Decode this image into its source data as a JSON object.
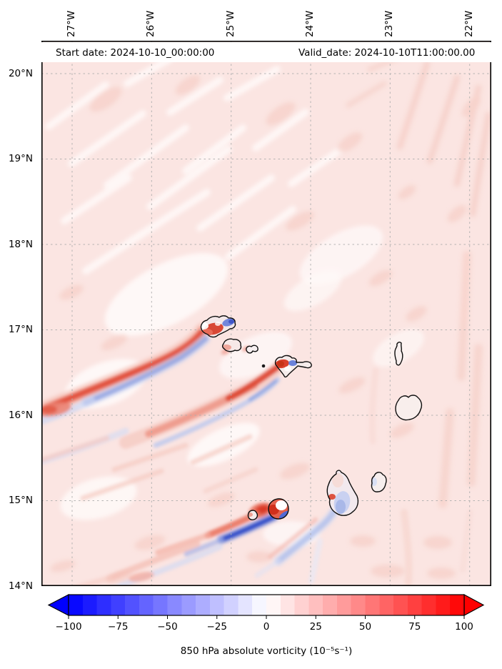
{
  "figure": {
    "title_left": "Start date: 2024-10-10_00:00:00",
    "title_right": "Valid_date: 2024-10-10T11:00:00.00",
    "background": "#ffffff"
  },
  "axes": {
    "lon_ticks": [
      "27°W",
      "26°W",
      "25°W",
      "24°W",
      "23°W",
      "22°W"
    ],
    "lat_ticks": [
      "20°N",
      "19°N",
      "18°N",
      "17°N",
      "16°N",
      "15°N",
      "14°N"
    ],
    "grid": true,
    "grid_style": "dashed-gray"
  },
  "colorbar": {
    "label": "850 hPa absolute vorticity (10⁻⁵s⁻¹)",
    "ticks": [
      "−100",
      "−75",
      "−50",
      "−25",
      "0",
      "25",
      "50",
      "75",
      "100"
    ],
    "vmin": -100,
    "vmax": 100,
    "cmap": "bwr",
    "extend": "both",
    "colors": {
      "min_end": "#0000ff",
      "zero": "#ffffff",
      "max_end": "#ff0000"
    }
  },
  "chart_data": {
    "type": "heatmap",
    "title_left": "Start date: 2024-10-10_00:00:00",
    "title_right": "Valid_date: 2024-10-10T11:00:00.00",
    "field": "850 hPa absolute vorticity",
    "units": "10⁻⁵ s⁻¹",
    "colormap": "bwr",
    "extend": "both",
    "vmin": -100,
    "vmax": 100,
    "colorbar_ticks": [
      -100,
      -75,
      -50,
      -25,
      0,
      25,
      50,
      75,
      100
    ],
    "x_axis": {
      "side": "top",
      "ticks": [
        "27°W",
        "26°W",
        "25°W",
        "24°W",
        "23°W",
        "22°W"
      ],
      "range_deg_west": [
        27.4,
        21.7
      ]
    },
    "y_axis": {
      "ticks": [
        "20°N",
        "19°N",
        "18°N",
        "17°N",
        "16°N",
        "15°N",
        "14°N"
      ],
      "range_deg_north": [
        14.0,
        20.4
      ]
    },
    "grid": true,
    "background_value_estimate": 5,
    "islands_outlined": 11,
    "features": [
      {
        "desc": "NW island wake: positive (red) vorticity streak extending SW",
        "approx_lon": "26.5°W",
        "approx_lat": "16.5°N",
        "peak_value": 60
      },
      {
        "desc": "NW island wake: adjacent negative (blue) streak",
        "approx_lon": "26.3°W",
        "approx_lat": "16.3°N",
        "peak_value": -35
      },
      {
        "desc": "central island wake: red/blue streak pair toward SW",
        "approx_lon": "25.2°W",
        "approx_lat": "16.1°N",
        "peak_value": 45
      },
      {
        "desc": "intense vortex dipole at round SW island (red core, dark-blue band)",
        "approx_lon": "24.35°W",
        "approx_lat": "14.85°N",
        "peak_value": 100,
        "min_value": -100
      },
      {
        "desc": "lee wake of large southern island (negative streak)",
        "approx_lon": "23.7°W",
        "approx_lat": "14.8°N",
        "peak_value": -40
      },
      {
        "desc": "weak positive background with pale streaky texture over whole domain",
        "value_range": [
          0,
          15
        ]
      }
    ]
  }
}
